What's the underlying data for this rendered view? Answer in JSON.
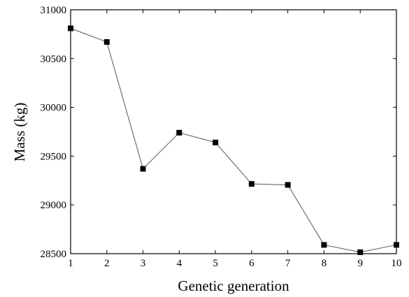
{
  "chart_data": {
    "type": "line",
    "title": "",
    "xlabel": "Genetic generation",
    "ylabel": "Mass (kg)",
    "xlim": [
      1,
      10
    ],
    "ylim": [
      28500,
      31000
    ],
    "x_ticks": [
      1,
      2,
      3,
      4,
      5,
      6,
      7,
      8,
      9,
      10
    ],
    "y_ticks": [
      28500,
      29000,
      29500,
      30000,
      30500,
      31000
    ],
    "grid": false,
    "series": [
      {
        "x": [
          1,
          2,
          3,
          4,
          5,
          6,
          7,
          8,
          9,
          10
        ],
        "values": [
          30810,
          30670,
          29370,
          29740,
          29640,
          29215,
          29205,
          28590,
          28515,
          28590
        ],
        "marker": "square",
        "color": "#000000",
        "line_color": "#555555"
      }
    ]
  }
}
